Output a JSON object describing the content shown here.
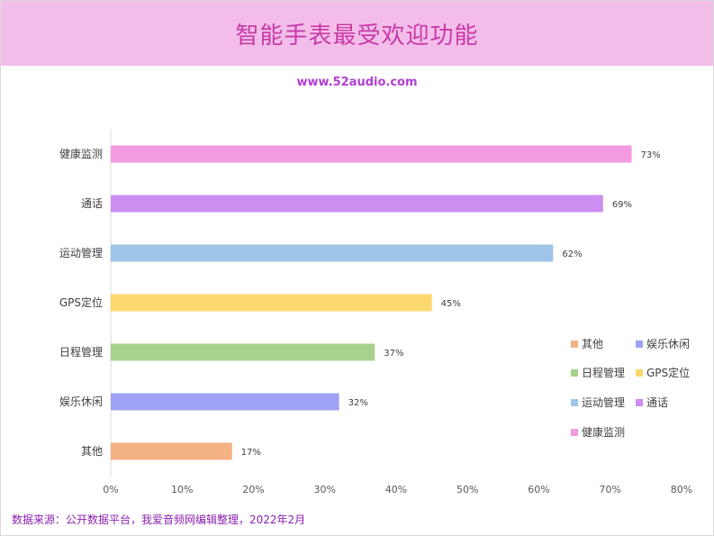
{
  "header": {
    "title": "智能手表最受欢迎功能",
    "subtitle": "www.52audio.com"
  },
  "footer": {
    "source": "数据来源：公开数据平台，我爱音频网编辑整理，2022年2月"
  },
  "colors": {
    "title_band": "#f3bdea",
    "title_text": "#c83aa6",
    "subtitle_text": "#b13fd4",
    "source_text": "#8a1fb0"
  },
  "chart_data": {
    "type": "bar",
    "orientation": "horizontal",
    "categories": [
      "健康监测",
      "通话",
      "运动管理",
      "GPS定位",
      "日程管理",
      "娱乐休闲",
      "其他"
    ],
    "values": [
      73,
      69,
      62,
      45,
      37,
      32,
      17
    ],
    "value_labels": [
      "73%",
      "69%",
      "62%",
      "45%",
      "37%",
      "32%",
      "17%"
    ],
    "colors": [
      "#f49ae0",
      "#cc8ef0",
      "#9fc5e8",
      "#fcd86f",
      "#a9d18e",
      "#9fa1f4",
      "#f4b183"
    ],
    "xlim": [
      0,
      80
    ],
    "x_ticks": [
      "0%",
      "10%",
      "20%",
      "30%",
      "40%",
      "50%",
      "60%",
      "70%",
      "80%"
    ],
    "grid": false,
    "legend_position": "right",
    "legend": [
      {
        "label": "其他",
        "color": "#f4b183"
      },
      {
        "label": "娱乐休闲",
        "color": "#9fa1f4"
      },
      {
        "label": "日程管理",
        "color": "#a9d18e"
      },
      {
        "label": "GPS定位",
        "color": "#fcd86f"
      },
      {
        "label": "运动管理",
        "color": "#9fc5e8"
      },
      {
        "label": "通话",
        "color": "#cc8ef0"
      },
      {
        "label": "健康监测",
        "color": "#f49ae0"
      }
    ]
  }
}
